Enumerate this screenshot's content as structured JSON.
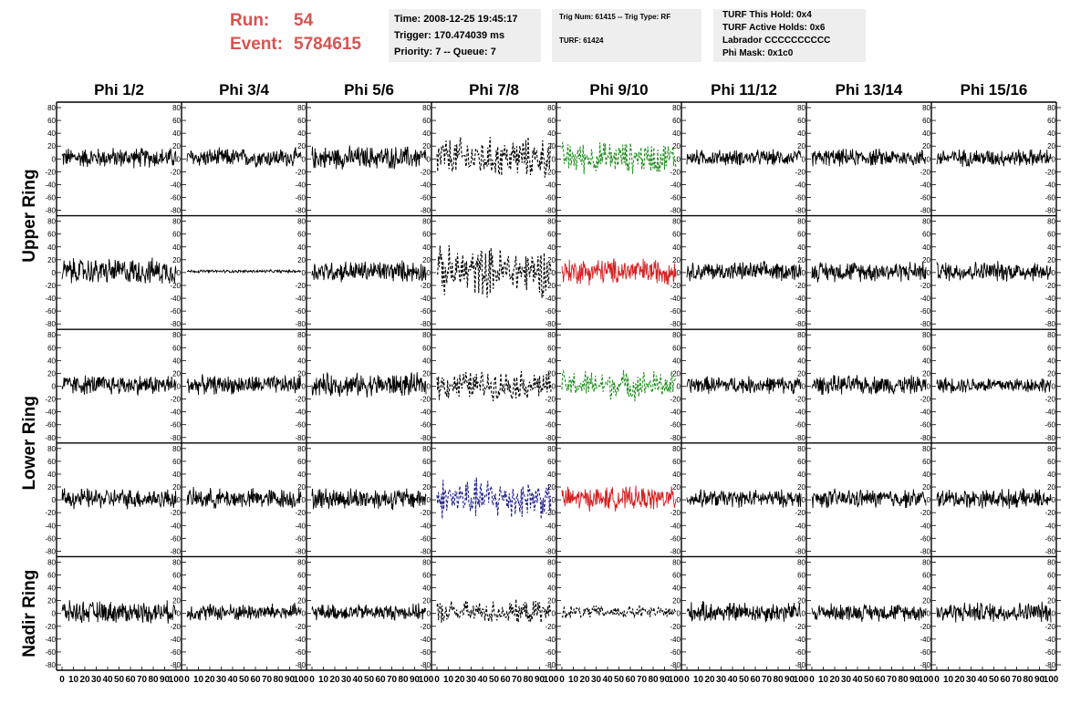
{
  "header": {
    "run_label": "Run:",
    "run_value": "54",
    "event_label": "Event:",
    "event_value": "5784615"
  },
  "info1": {
    "time": "Time: 2008-12-25 19:45:17",
    "trigger": "Trigger: 170.474039 ms",
    "priority": "Priority: 7 -- Queue: 7"
  },
  "info2": {
    "trig": "Trig Num: 61415 -- Trig Type: RF",
    "turf": "TURF: 61424"
  },
  "info3": {
    "hold": "TURF This Hold: 0x4",
    "active": "TURF Active Holds: 0x6",
    "labrador": "Labrador CCCCCCCCCC",
    "phimask": "Phi Mask: 0x1c0"
  },
  "chart_data": {
    "type": "line",
    "columns": [
      "Phi 1/2",
      "Phi 3/4",
      "Phi 5/6",
      "Phi 7/8",
      "Phi 9/10",
      "Phi 11/12",
      "Phi 13/14",
      "Phi 15/16"
    ],
    "rows": [
      "Upper Ring",
      "Lower Ring",
      "Nadir Ring"
    ],
    "ylim": [
      -80,
      80
    ],
    "yticks": [
      80,
      60,
      40,
      20,
      0,
      -20,
      -40,
      -60,
      -80
    ],
    "xlim": [
      0,
      100
    ],
    "xticks": [
      0,
      10,
      20,
      30,
      40,
      50,
      60,
      70,
      80,
      90,
      100
    ],
    "colors": {
      "normal": "#000000",
      "green": "#1f8f1f",
      "red": "#d42020",
      "blue": "#1c1c8c"
    },
    "panels": [
      {
        "row": 0,
        "col": 0,
        "amp": 14,
        "color": "normal",
        "style": "solid"
      },
      {
        "row": 0,
        "col": 1,
        "amp": 13,
        "color": "normal",
        "style": "solid"
      },
      {
        "row": 0,
        "col": 2,
        "amp": 16,
        "color": "normal",
        "style": "solid"
      },
      {
        "row": 0,
        "col": 3,
        "amp": 28,
        "color": "normal",
        "style": "dashed"
      },
      {
        "row": 0,
        "col": 4,
        "amp": 22,
        "color": "green",
        "style": "dashed"
      },
      {
        "row": 0,
        "col": 5,
        "amp": 11,
        "color": "normal",
        "style": "solid"
      },
      {
        "row": 0,
        "col": 6,
        "amp": 12,
        "color": "normal",
        "style": "solid"
      },
      {
        "row": 0,
        "col": 7,
        "amp": 12,
        "color": "normal",
        "style": "solid"
      },
      {
        "row": 1,
        "col": 0,
        "amp": 18,
        "color": "normal",
        "style": "solid"
      },
      {
        "row": 1,
        "col": 1,
        "amp": 2,
        "color": "normal",
        "style": "solid"
      },
      {
        "row": 1,
        "col": 2,
        "amp": 15,
        "color": "normal",
        "style": "solid"
      },
      {
        "row": 1,
        "col": 3,
        "amp": 34,
        "color": "normal",
        "style": "dashed"
      },
      {
        "row": 1,
        "col": 4,
        "amp": 18,
        "color": "red",
        "style": "solid"
      },
      {
        "row": 1,
        "col": 5,
        "amp": 13,
        "color": "normal",
        "style": "solid"
      },
      {
        "row": 1,
        "col": 6,
        "amp": 14,
        "color": "normal",
        "style": "solid"
      },
      {
        "row": 1,
        "col": 7,
        "amp": 14,
        "color": "normal",
        "style": "solid"
      },
      {
        "row": 2,
        "col": 0,
        "amp": 14,
        "color": "normal",
        "style": "solid"
      },
      {
        "row": 2,
        "col": 1,
        "amp": 13,
        "color": "normal",
        "style": "solid"
      },
      {
        "row": 2,
        "col": 2,
        "amp": 16,
        "color": "normal",
        "style": "solid"
      },
      {
        "row": 2,
        "col": 3,
        "amp": 20,
        "color": "normal",
        "style": "dashed"
      },
      {
        "row": 2,
        "col": 4,
        "amp": 20,
        "color": "green",
        "style": "dashed"
      },
      {
        "row": 2,
        "col": 5,
        "amp": 12,
        "color": "normal",
        "style": "solid"
      },
      {
        "row": 2,
        "col": 6,
        "amp": 13,
        "color": "normal",
        "style": "solid"
      },
      {
        "row": 2,
        "col": 7,
        "amp": 11,
        "color": "normal",
        "style": "solid"
      },
      {
        "row": 3,
        "col": 0,
        "amp": 14,
        "color": "normal",
        "style": "solid"
      },
      {
        "row": 3,
        "col": 1,
        "amp": 14,
        "color": "normal",
        "style": "solid"
      },
      {
        "row": 3,
        "col": 2,
        "amp": 15,
        "color": "normal",
        "style": "solid"
      },
      {
        "row": 3,
        "col": 3,
        "amp": 28,
        "color": "blue",
        "style": "dashed"
      },
      {
        "row": 3,
        "col": 4,
        "amp": 16,
        "color": "red",
        "style": "solid"
      },
      {
        "row": 3,
        "col": 5,
        "amp": 12,
        "color": "normal",
        "style": "solid"
      },
      {
        "row": 3,
        "col": 6,
        "amp": 13,
        "color": "normal",
        "style": "solid"
      },
      {
        "row": 3,
        "col": 7,
        "amp": 13,
        "color": "normal",
        "style": "solid"
      },
      {
        "row": 4,
        "col": 0,
        "amp": 15,
        "color": "normal",
        "style": "solid"
      },
      {
        "row": 4,
        "col": 1,
        "amp": 12,
        "color": "normal",
        "style": "solid"
      },
      {
        "row": 4,
        "col": 2,
        "amp": 11,
        "color": "normal",
        "style": "solid"
      },
      {
        "row": 4,
        "col": 3,
        "amp": 16,
        "color": "normal",
        "style": "dashed"
      },
      {
        "row": 4,
        "col": 4,
        "amp": 9,
        "color": "normal",
        "style": "dashed"
      },
      {
        "row": 4,
        "col": 5,
        "amp": 14,
        "color": "normal",
        "style": "solid"
      },
      {
        "row": 4,
        "col": 6,
        "amp": 12,
        "color": "normal",
        "style": "solid"
      },
      {
        "row": 4,
        "col": 7,
        "amp": 14,
        "color": "normal",
        "style": "solid"
      }
    ]
  }
}
